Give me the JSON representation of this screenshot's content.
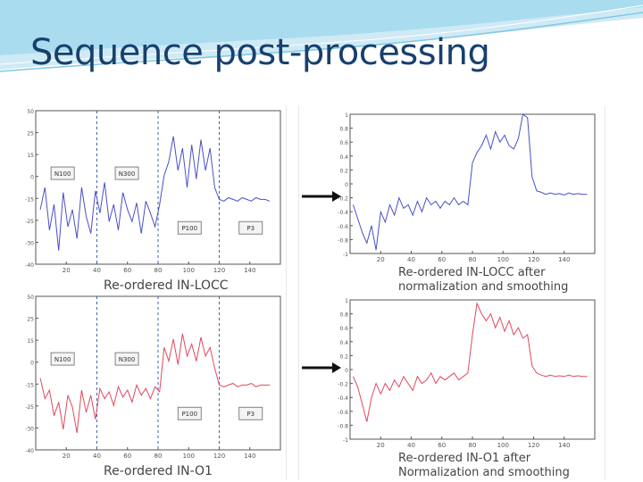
{
  "slide": {
    "title": "Sequence post-processing"
  },
  "colors": {
    "title": "#17406d",
    "blue": "#4a4fc8",
    "red": "#e0485e",
    "dashed": "#3a64b0",
    "header_wave": "#7ec8e6"
  },
  "captions": {
    "c1": "Re-ordered IN-LOCC",
    "c2": "Re-ordered IN-O1",
    "c3a": "Re-ordered IN-LOCC after",
    "c3b": "normalization and smoothing",
    "c4a": "Re-ordered IN-O1 after",
    "c4b": "Normalization and smoothing"
  },
  "icons": {
    "arrow": "right-arrow-icon"
  },
  "chart_data": [
    {
      "type": "line",
      "xlim": [
        0,
        160
      ],
      "ylim": [
        -40,
        50
      ],
      "xticks": [
        20,
        40,
        60,
        80,
        100,
        120,
        140
      ],
      "yticks": [
        50,
        25,
        15,
        0,
        -15,
        -25,
        -30,
        -40
      ],
      "ytick_labels": [
        "50",
        "25",
        "15",
        "0",
        "-15",
        "-25",
        "-30",
        "-40"
      ],
      "dashed_x": [
        40,
        80,
        120
      ],
      "boxes": [
        {
          "label": "N100",
          "x": 10,
          "y": 17
        },
        {
          "label": "N300",
          "x": 52,
          "y": 17
        },
        {
          "label": "P100",
          "x": 93,
          "y": -15
        },
        {
          "label": "P3",
          "x": 133,
          "y": -15
        }
      ],
      "x": [
        3,
        6,
        9,
        12,
        15,
        18,
        21,
        24,
        27,
        30,
        33,
        36,
        39,
        42,
        45,
        48,
        51,
        54,
        57,
        60,
        63,
        66,
        69,
        72,
        75,
        78,
        81,
        84,
        87,
        90,
        93,
        96,
        99,
        102,
        105,
        108,
        111,
        114,
        117,
        120,
        123,
        126,
        129,
        132,
        135,
        138,
        141,
        144,
        147,
        150,
        153
      ],
      "values": [
        -8,
        5,
        -20,
        -5,
        -32,
        2,
        -18,
        -8,
        -25,
        5,
        -12,
        -22,
        3,
        -10,
        8,
        -15,
        -5,
        -20,
        2,
        -8,
        -15,
        -4,
        -22,
        -3,
        -10,
        -18,
        -5,
        12,
        20,
        35,
        15,
        28,
        5,
        30,
        10,
        33,
        15,
        28,
        5,
        -2,
        -3,
        -1,
        -2,
        -3,
        -1,
        -2,
        -3,
        -1,
        -2,
        -2,
        -3
      ]
    },
    {
      "type": "line",
      "xlim": [
        0,
        160
      ],
      "ylim": [
        -40,
        50
      ],
      "xticks": [
        20,
        40,
        60,
        80,
        100,
        120,
        140
      ],
      "yticks": [
        50,
        25,
        15,
        0,
        -15,
        -25,
        -30,
        -40
      ],
      "ytick_labels": [
        "50",
        "25",
        "15",
        "0",
        "-15",
        "-25",
        "-30",
        "-40"
      ],
      "dashed_x": [
        40,
        80,
        120
      ],
      "boxes": [
        {
          "label": "N100",
          "x": 10,
          "y": 17
        },
        {
          "label": "N300",
          "x": 52,
          "y": 17
        },
        {
          "label": "P100",
          "x": 93,
          "y": -15
        },
        {
          "label": "P3",
          "x": 133,
          "y": -15
        }
      ],
      "x": [
        3,
        6,
        9,
        12,
        15,
        18,
        21,
        24,
        27,
        30,
        33,
        36,
        39,
        42,
        45,
        48,
        51,
        54,
        57,
        60,
        63,
        66,
        69,
        72,
        75,
        78,
        81,
        84,
        87,
        90,
        93,
        96,
        99,
        102,
        105,
        108,
        111,
        114,
        117,
        120,
        123,
        126,
        129,
        132,
        135,
        138,
        141,
        144,
        147,
        150,
        153
      ],
      "values": [
        2,
        -10,
        -5,
        -20,
        -12,
        -28,
        -8,
        -15,
        -30,
        -5,
        -18,
        -8,
        -22,
        -4,
        -10,
        -6,
        -14,
        -3,
        -9,
        -5,
        -12,
        -2,
        -8,
        -4,
        -10,
        -3,
        -6,
        20,
        12,
        25,
        10,
        28,
        15,
        22,
        12,
        26,
        15,
        20,
        8,
        -2,
        -3,
        -2,
        -1,
        -3,
        -2,
        -2,
        -1,
        -3,
        -2,
        -2,
        -2
      ]
    },
    {
      "type": "line",
      "xlim": [
        0,
        160
      ],
      "ylim": [
        -1,
        1
      ],
      "xticks": [
        20,
        40,
        60,
        80,
        100,
        120,
        140
      ],
      "yticks": [
        1,
        0.8,
        0.6,
        0.4,
        0.2,
        0,
        -0.2,
        -0.4,
        -0.6,
        -0.8,
        -1
      ],
      "ytick_labels": [
        "1",
        "0.8",
        "0.6",
        "0.4",
        "0.2",
        "0",
        "-0.2",
        "-0.4",
        "-0.6",
        "-0.8",
        "-1"
      ],
      "x": [
        2,
        5,
        8,
        11,
        14,
        17,
        20,
        23,
        26,
        29,
        32,
        35,
        38,
        41,
        44,
        47,
        50,
        53,
        56,
        59,
        62,
        65,
        68,
        71,
        74,
        77,
        80,
        83,
        86,
        89,
        92,
        95,
        98,
        101,
        104,
        107,
        110,
        113,
        116,
        119,
        122,
        125,
        128,
        131,
        134,
        137,
        140,
        143,
        146,
        149,
        152,
        155
      ],
      "values": [
        -0.3,
        -0.5,
        -0.7,
        -0.85,
        -0.6,
        -0.95,
        -0.4,
        -0.55,
        -0.3,
        -0.45,
        -0.2,
        -0.35,
        -0.3,
        -0.45,
        -0.25,
        -0.4,
        -0.2,
        -0.3,
        -0.25,
        -0.35,
        -0.25,
        -0.3,
        -0.2,
        -0.3,
        -0.25,
        -0.3,
        0.3,
        0.45,
        0.55,
        0.7,
        0.5,
        0.75,
        0.6,
        0.7,
        0.55,
        0.5,
        0.65,
        1.0,
        0.95,
        0.1,
        -0.1,
        -0.12,
        -0.15,
        -0.13,
        -0.15,
        -0.14,
        -0.16,
        -0.13,
        -0.15,
        -0.14,
        -0.15,
        -0.15
      ]
    },
    {
      "type": "line",
      "xlim": [
        0,
        160
      ],
      "ylim": [
        -1,
        1
      ],
      "xticks": [
        20,
        40,
        60,
        80,
        100,
        120,
        140
      ],
      "yticks": [
        1,
        0.8,
        0.6,
        0.4,
        0.2,
        0,
        -0.2,
        -0.4,
        -0.6,
        -0.8,
        -1
      ],
      "ytick_labels": [
        "1",
        "0.8",
        "0.6",
        "0.4",
        "0.2",
        "0",
        "-0.2",
        "-0.4",
        "-0.6",
        "-0.8",
        "-1"
      ],
      "x": [
        2,
        5,
        8,
        11,
        14,
        17,
        20,
        23,
        26,
        29,
        32,
        35,
        38,
        41,
        44,
        47,
        50,
        53,
        56,
        59,
        62,
        65,
        68,
        71,
        74,
        77,
        80,
        83,
        86,
        89,
        92,
        95,
        98,
        101,
        104,
        107,
        110,
        113,
        116,
        119,
        122,
        125,
        128,
        131,
        134,
        137,
        140,
        143,
        146,
        149,
        152,
        155
      ],
      "values": [
        -0.1,
        -0.25,
        -0.5,
        -0.75,
        -0.4,
        -0.2,
        -0.35,
        -0.2,
        -0.3,
        -0.15,
        -0.25,
        -0.1,
        -0.2,
        -0.3,
        -0.1,
        -0.2,
        -0.15,
        -0.05,
        -0.2,
        -0.1,
        -0.15,
        -0.1,
        -0.05,
        -0.15,
        -0.1,
        -0.05,
        0.5,
        0.95,
        0.8,
        0.7,
        0.8,
        0.6,
        0.75,
        0.55,
        0.7,
        0.5,
        0.6,
        0.45,
        0.5,
        0.05,
        -0.05,
        -0.08,
        -0.1,
        -0.08,
        -0.1,
        -0.09,
        -0.1,
        -0.08,
        -0.1,
        -0.09,
        -0.1,
        -0.1
      ]
    }
  ]
}
